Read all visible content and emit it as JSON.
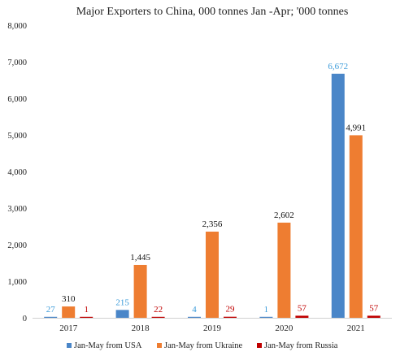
{
  "chart_data": {
    "type": "bar",
    "title": "Major Exporters to China, 000 tonnes Jan -Apr; '000 tonnes",
    "xlabel": "",
    "ylabel": "",
    "categories": [
      "2017",
      "2018",
      "2019",
      "2020",
      "2021"
    ],
    "ylim": [
      0,
      8000
    ],
    "yticks": [
      0,
      1000,
      2000,
      3000,
      4000,
      5000,
      6000,
      7000,
      8000
    ],
    "ytick_labels": [
      "0",
      "1,000",
      "2,000",
      "3,000",
      "4,000",
      "5,000",
      "6,000",
      "7,000",
      "8,000"
    ],
    "grid": false,
    "legend_position": "bottom",
    "series": [
      {
        "name": "Jan-May  from USA",
        "color": "#4a86c8",
        "label_color": "#3a9ad9",
        "values": [
          27,
          215,
          4,
          1,
          6672
        ],
        "labels": [
          "27",
          "215",
          "4",
          "1",
          "6,672"
        ]
      },
      {
        "name": "Jan-May from Ukraine",
        "color": "#ee7d31",
        "label_color": "#111111",
        "values": [
          310,
          1445,
          2356,
          2602,
          4991
        ],
        "labels": [
          "310",
          "1,445",
          "2,356",
          "2,602",
          "4,991"
        ]
      },
      {
        "name": "Jan-May from Russia",
        "color": "#c00000",
        "label_color": "#c00000",
        "values": [
          1,
          22,
          29,
          57,
          57
        ],
        "labels": [
          "1",
          "22",
          "29",
          "57",
          "57"
        ]
      }
    ]
  }
}
